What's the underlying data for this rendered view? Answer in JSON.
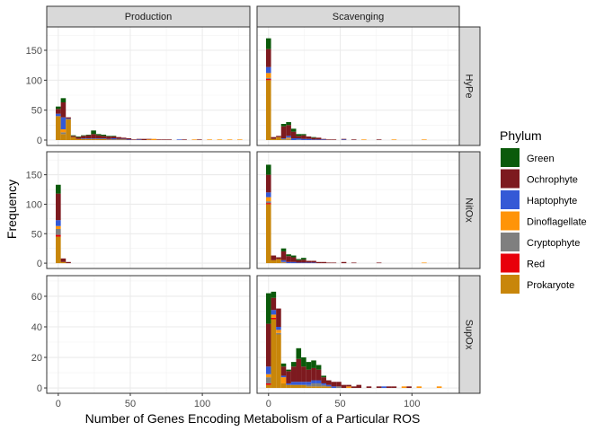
{
  "chart_data": {
    "type": "bar",
    "subtype": "stacked-histogram-facet-grid",
    "xlabel": "Number of Genes Encoding Metabolism of a Particular ROS",
    "ylabel": "Frequency",
    "col_facets": [
      "Production",
      "Scavenging"
    ],
    "row_facets": [
      "HyPe",
      "NitOx",
      "SupOx"
    ],
    "x_ticks": [
      0,
      50,
      100
    ],
    "xlim": [
      -8,
      133
    ],
    "bin_width": 3.5,
    "bin_starts": [
      -1.75,
      1.75,
      5.25,
      8.75,
      12.25,
      15.75,
      19.25,
      22.75,
      26.25,
      29.75,
      33.25,
      36.75,
      40.25,
      43.75,
      47.25,
      50.75,
      54.25,
      57.75,
      61.25,
      64.75,
      68.25,
      71.75,
      75.25,
      78.75,
      82.25,
      85.75,
      89.25,
      92.75,
      96.25,
      99.75,
      103.25,
      106.75,
      110.25,
      113.75,
      117.25,
      120.75,
      124.25
    ],
    "legend": {
      "title": "Phylum",
      "position": "right",
      "entries": [
        {
          "name": "Green",
          "color": "#0b5a0b"
        },
        {
          "name": "Ochrophyte",
          "color": "#7d1a1f"
        },
        {
          "name": "Haptophyte",
          "color": "#3459d6"
        },
        {
          "name": "Dinoflagellate",
          "color": "#ff9408"
        },
        {
          "name": "Cryptophyte",
          "color": "#7f7f7f"
        },
        {
          "name": "Red",
          "color": "#e8000b"
        },
        {
          "name": "Prokaryote",
          "color": "#c8860a"
        }
      ]
    },
    "stack_order": [
      "Prokaryote",
      "Red",
      "Cryptophyte",
      "Dinoflagellate",
      "Haptophyte",
      "Ochrophyte",
      "Green"
    ],
    "panels": [
      {
        "row": "HyPe",
        "col": "Production",
        "ylim": [
          -9,
          189
        ],
        "y_ticks": [
          0,
          50,
          100,
          150
        ],
        "bins": [
          {
            "i": 0,
            "Prokaryote": 40,
            "Ochrophyte": 8,
            "Haptophyte": 4,
            "Green": 4
          },
          {
            "i": 1,
            "Prokaryote": 10,
            "Ochrophyte": 25,
            "Haptophyte": 20,
            "Dinoflagellate": 5,
            "Cryptophyte": 3,
            "Green": 7
          },
          {
            "i": 2,
            "Prokaryote": 35,
            "Ochrophyte": 2,
            "Haptophyte": 1
          },
          {
            "i": 3,
            "Prokaryote": 5,
            "Ochrophyte": 2,
            "Green": 1
          },
          {
            "i": 4,
            "Prokaryote": 2,
            "Ochrophyte": 3,
            "Green": 1
          },
          {
            "i": 5,
            "Prokaryote": 2,
            "Ochrophyte": 4,
            "Haptophyte": 1,
            "Green": 1
          },
          {
            "i": 6,
            "Prokaryote": 2,
            "Ochrophyte": 5,
            "Haptophyte": 1,
            "Green": 1
          },
          {
            "i": 7,
            "Prokaryote": 2,
            "Ochrophyte": 7,
            "Haptophyte": 1,
            "Green": 6
          },
          {
            "i": 8,
            "Prokaryote": 2,
            "Ochrophyte": 5,
            "Haptophyte": 1,
            "Green": 2
          },
          {
            "i": 9,
            "Prokaryote": 2,
            "Ochrophyte": 4,
            "Haptophyte": 1,
            "Green": 2
          },
          {
            "i": 10,
            "Prokaryote": 1,
            "Ochrophyte": 4,
            "Haptophyte": 1,
            "Green": 1
          },
          {
            "i": 11,
            "Prokaryote": 1,
            "Ochrophyte": 3,
            "Haptophyte": 2,
            "Green": 1
          },
          {
            "i": 12,
            "Prokaryote": 1,
            "Ochrophyte": 3,
            "Haptophyte": 1
          },
          {
            "i": 13,
            "Prokaryote": 1,
            "Ochrophyte": 2,
            "Haptophyte": 1
          },
          {
            "i": 14,
            "Ochrophyte": 2,
            "Haptophyte": 1
          },
          {
            "i": 15,
            "Ochrophyte": 1
          },
          {
            "i": 16,
            "Ochrophyte": 1,
            "Haptophyte": 1
          },
          {
            "i": 17,
            "Ochrophyte": 2
          },
          {
            "i": 18,
            "Dinoflagellate": 1,
            "Ochrophyte": 1
          },
          {
            "i": 19,
            "Dinoflagellate": 2
          },
          {
            "i": 20,
            "Ochrophyte": 1
          },
          {
            "i": 21,
            "Ochrophyte": 1
          },
          {
            "i": 22,
            "Ochrophyte": 1
          },
          {
            "i": 24,
            "Haptophyte": 1
          },
          {
            "i": 25,
            "Ochrophyte": 1
          },
          {
            "i": 27,
            "Dinoflagellate": 1
          },
          {
            "i": 28,
            "Ochrophyte": 1
          },
          {
            "i": 30,
            "Dinoflagellate": 1
          },
          {
            "i": 32,
            "Dinoflagellate": 1
          },
          {
            "i": 34,
            "Dinoflagellate": 1
          },
          {
            "i": 36,
            "Dinoflagellate": 1
          }
        ]
      },
      {
        "row": "HyPe",
        "col": "Scavenging",
        "ylim": [
          -9,
          189
        ],
        "y_ticks": [
          0,
          50,
          100,
          150
        ],
        "bins": [
          {
            "i": 0,
            "Prokaryote": 100,
            "Red": 2,
            "Cryptophyte": 2,
            "Dinoflagellate": 8,
            "Haptophyte": 10,
            "Ochrophyte": 30,
            "Green": 18
          },
          {
            "i": 1,
            "Prokaryote": 2,
            "Ochrophyte": 3
          },
          {
            "i": 2,
            "Prokaryote": 5,
            "Ochrophyte": 2
          },
          {
            "i": 3,
            "Prokaryote": 1,
            "Ochrophyte": 20,
            "Haptophyte": 1,
            "Cryptophyte": 1,
            "Green": 4
          },
          {
            "i": 4,
            "Prokaryote": 1,
            "Ochrophyte": 18,
            "Haptophyte": 3,
            "Cryptophyte": 1,
            "Dinoflagellate": 2,
            "Green": 5
          },
          {
            "i": 5,
            "Ochrophyte": 11,
            "Haptophyte": 3,
            "Green": 5
          },
          {
            "i": 6,
            "Ochrophyte": 4,
            "Haptophyte": 2,
            "Cryptophyte": 1,
            "Green": 3
          },
          {
            "i": 7,
            "Ochrophyte": 6,
            "Haptophyte": 2,
            "Green": 2
          },
          {
            "i": 8,
            "Ochrophyte": 4,
            "Haptophyte": 2
          },
          {
            "i": 9,
            "Ochrophyte": 3,
            "Haptophyte": 1,
            "Green": 1
          },
          {
            "i": 10,
            "Ochrophyte": 3,
            "Haptophyte": 1
          },
          {
            "i": 11,
            "Ochrophyte": 1,
            "Haptophyte": 1
          },
          {
            "i": 12,
            "Ochrophyte": 1
          },
          {
            "i": 13,
            "Ochrophyte": 1
          },
          {
            "i": 15,
            "Ochrophyte": 1,
            "Haptophyte": 1
          },
          {
            "i": 17,
            "Ochrophyte": 1
          },
          {
            "i": 19,
            "Dinoflagellate": 1
          },
          {
            "i": 22,
            "Ochrophyte": 1
          },
          {
            "i": 25,
            "Dinoflagellate": 1
          },
          {
            "i": 31,
            "Dinoflagellate": 1
          }
        ]
      },
      {
        "row": "NitOx",
        "col": "Production",
        "ylim": [
          -9,
          189
        ],
        "y_ticks": [
          0,
          50,
          100,
          150
        ],
        "bins": [
          {
            "i": 0,
            "Prokaryote": 45,
            "Ochrophyte": 45,
            "Haptophyte": 10,
            "Dinoflagellate": 5,
            "Cryptophyte": 10,
            "Green": 15,
            "Red": 3
          },
          {
            "i": 1,
            "Prokaryote": 2,
            "Ochrophyte": 6
          },
          {
            "i": 2,
            "Ochrophyte": 2
          }
        ]
      },
      {
        "row": "NitOx",
        "col": "Scavenging",
        "ylim": [
          -9,
          189
        ],
        "y_ticks": [
          0,
          50,
          100,
          150
        ],
        "bins": [
          {
            "i": 0,
            "Prokaryote": 100,
            "Red": 2,
            "Cryptophyte": 3,
            "Dinoflagellate": 7,
            "Haptophyte": 8,
            "Ochrophyte": 30,
            "Green": 17
          },
          {
            "i": 1,
            "Prokaryote": 5,
            "Ochrophyte": 8
          },
          {
            "i": 2,
            "Prokaryote": 7,
            "Ochrophyte": 3
          },
          {
            "i": 3,
            "Ochrophyte": 15,
            "Haptophyte": 3,
            "Cryptophyte": 1,
            "Dinoflagellate": 1,
            "Green": 5
          },
          {
            "i": 4,
            "Ochrophyte": 10,
            "Haptophyte": 2,
            "Green": 3
          },
          {
            "i": 5,
            "Ochrophyte": 8,
            "Haptophyte": 2,
            "Green": 3
          },
          {
            "i": 6,
            "Ochrophyte": 4,
            "Haptophyte": 1,
            "Green": 2
          },
          {
            "i": 7,
            "Ochrophyte": 5,
            "Haptophyte": 1,
            "Green": 3
          },
          {
            "i": 8,
            "Ochrophyte": 3,
            "Haptophyte": 1
          },
          {
            "i": 9,
            "Ochrophyte": 3,
            "Haptophyte": 1
          },
          {
            "i": 10,
            "Ochrophyte": 2
          },
          {
            "i": 11,
            "Ochrophyte": 2
          },
          {
            "i": 12,
            "Ochrophyte": 1
          },
          {
            "i": 13,
            "Ochrophyte": 1
          },
          {
            "i": 15,
            "Ochrophyte": 2
          },
          {
            "i": 17,
            "Ochrophyte": 1
          },
          {
            "i": 22,
            "Ochrophyte": 1
          },
          {
            "i": 31,
            "Dinoflagellate": 1
          }
        ]
      },
      {
        "row": "SupOx",
        "col": "Production",
        "ylim": [
          -3.5,
          73.5
        ],
        "y_ticks": [
          0,
          20,
          40,
          60
        ],
        "bins": []
      },
      {
        "row": "SupOx",
        "col": "Scavenging",
        "ylim": [
          -3.5,
          73.5
        ],
        "y_ticks": [
          0,
          20,
          40,
          60
        ],
        "bins": [
          {
            "i": 0,
            "Prokaryote": 2,
            "Red": 1,
            "Ochrophyte": 28,
            "Haptophyte": 5,
            "Dinoflagellate": 2,
            "Green": 20,
            "Cryptophyte": 4
          },
          {
            "i": 1,
            "Prokaryote": 45,
            "Red": 1,
            "Ochrophyte": 8,
            "Haptophyte": 3,
            "Dinoflagellate": 2,
            "Green": 4
          },
          {
            "i": 2,
            "Prokaryote": 35,
            "Ochrophyte": 12,
            "Haptophyte": 2,
            "Dinoflagellate": 2,
            "Cryptophyte": 1
          },
          {
            "i": 3,
            "Prokaryote": 3,
            "Ochrophyte": 6,
            "Haptophyte": 1,
            "Dinoflagellate": 4,
            "Green": 2
          },
          {
            "i": 4,
            "Prokaryote": 2,
            "Ochrophyte": 8,
            "Haptophyte": 1,
            "Green": 1
          },
          {
            "i": 5,
            "Prokaryote": 2,
            "Ochrophyte": 10,
            "Haptophyte": 2,
            "Green": 3
          },
          {
            "i": 6,
            "Prokaryote": 2,
            "Ochrophyte": 15,
            "Haptophyte": 2,
            "Green": 7
          },
          {
            "i": 7,
            "Prokaryote": 2,
            "Ochrophyte": 10,
            "Haptophyte": 2,
            "Green": 6
          },
          {
            "i": 8,
            "Prokaryote": 1,
            "Ochrophyte": 8,
            "Haptophyte": 2,
            "Green": 5,
            "Cryptophyte": 1
          },
          {
            "i": 9,
            "Prokaryote": 1,
            "Ochrophyte": 8,
            "Haptophyte": 2,
            "Green": 5,
            "Cryptophyte": 2
          },
          {
            "i": 10,
            "Prokaryote": 1,
            "Ochrophyte": 7,
            "Haptophyte": 2,
            "Green": 3,
            "Cryptophyte": 2
          },
          {
            "i": 11,
            "Prokaryote": 1,
            "Ochrophyte": 4,
            "Haptophyte": 1,
            "Green": 1,
            "Cryptophyte": 1
          },
          {
            "i": 12,
            "Prokaryote": 1,
            "Ochrophyte": 3,
            "Haptophyte": 1
          },
          {
            "i": 13,
            "Ochrophyte": 3,
            "Haptophyte": 1
          },
          {
            "i": 14,
            "Ochrophyte": 3,
            "Cryptophyte": 1
          },
          {
            "i": 15,
            "Ochrophyte": 2
          },
          {
            "i": 16,
            "Ochrophyte": 1,
            "Dinoflagellate": 1
          },
          {
            "i": 17,
            "Ochrophyte": 1
          },
          {
            "i": 18,
            "Ochrophyte": 2
          },
          {
            "i": 20,
            "Ochrophyte": 1
          },
          {
            "i": 22,
            "Ochrophyte": 1
          },
          {
            "i": 23,
            "Haptophyte": 1
          },
          {
            "i": 24,
            "Ochrophyte": 1
          },
          {
            "i": 25,
            "Ochrophyte": 1
          },
          {
            "i": 27,
            "Dinoflagellate": 1
          },
          {
            "i": 28,
            "Ochrophyte": 1
          },
          {
            "i": 30,
            "Dinoflagellate": 1
          },
          {
            "i": 34,
            "Dinoflagellate": 1
          }
        ]
      }
    ]
  }
}
